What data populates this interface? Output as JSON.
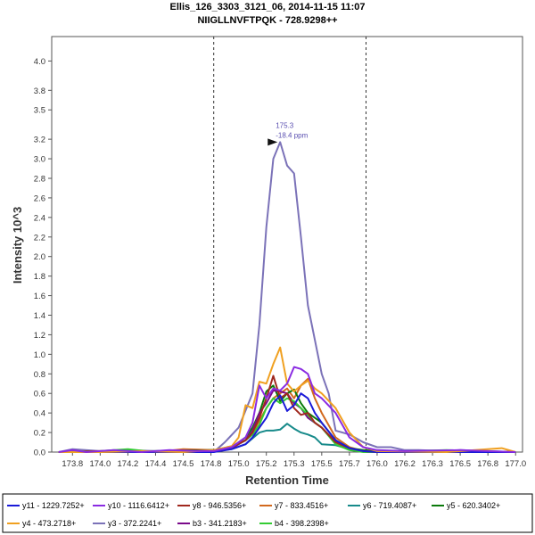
{
  "chart_data": {
    "type": "line",
    "title": "Ellis_126_3303_3121_06, 2014-11-15 11:07",
    "subtitle": "NIIGLLNVFTPQK - 728.9298++",
    "xlabel": "Retention Time",
    "ylabel": "Intensity 10^3",
    "xlim": [
      173.65,
      177.05
    ],
    "ylim": [
      0,
      4.25
    ],
    "xticks": [
      "173.8",
      "174.0",
      "174.2",
      "174.4",
      "174.5",
      "174.8",
      "175.0",
      "175.2",
      "175.3",
      "175.5",
      "175.7",
      "176.0",
      "176.2",
      "176.3",
      "176.5",
      "176.8",
      "177.0"
    ],
    "yticks": [
      "0.0",
      "0.2",
      "0.4",
      "0.6",
      "0.8",
      "1.0",
      "1.2",
      "1.4",
      "1.6",
      "1.8",
      "2.0",
      "2.2",
      "2.4",
      "2.6",
      "2.8",
      "3.0",
      "3.2",
      "3.5",
      "3.8",
      "4.0"
    ],
    "boundaries": [
      174.82,
      175.92
    ],
    "annotation": {
      "x": 175.3,
      "y": 3.17,
      "line1": "175.3",
      "line2": "-18.4 ppm"
    },
    "series": [
      {
        "name": "y11 - 1229.7252+",
        "color": "#1a1ad8",
        "x": [
          173.7,
          174.0,
          174.4,
          174.82,
          174.95,
          175.05,
          175.1,
          175.15,
          175.2,
          175.25,
          175.3,
          175.35,
          175.4,
          175.45,
          175.5,
          175.55,
          175.6,
          175.7,
          175.8,
          175.9,
          176.0,
          176.3,
          176.6,
          177.0
        ],
        "y": [
          0.0,
          0.0,
          0.0,
          0.0,
          0.03,
          0.08,
          0.15,
          0.25,
          0.35,
          0.5,
          0.58,
          0.42,
          0.48,
          0.6,
          0.55,
          0.4,
          0.3,
          0.12,
          0.04,
          0.01,
          0.0,
          0.0,
          0.0,
          0.0
        ]
      },
      {
        "name": "y10 - 1116.6412+",
        "color": "#8a2be2",
        "x": [
          173.7,
          173.8,
          173.9,
          174.1,
          174.3,
          174.5,
          174.7,
          174.82,
          174.95,
          175.05,
          175.1,
          175.15,
          175.2,
          175.25,
          175.3,
          175.35,
          175.4,
          175.45,
          175.5,
          175.55,
          175.6,
          175.7,
          175.8,
          175.9,
          176.0,
          176.2,
          176.6,
          177.0
        ],
        "y": [
          0.0,
          0.02,
          0.0,
          0.02,
          0.0,
          0.02,
          0.01,
          0.01,
          0.05,
          0.15,
          0.3,
          0.68,
          0.55,
          0.65,
          0.63,
          0.7,
          0.87,
          0.85,
          0.8,
          0.6,
          0.55,
          0.4,
          0.15,
          0.05,
          0.02,
          0.01,
          0.02,
          0.0
        ]
      },
      {
        "name": "y8 - 946.5356+",
        "color": "#a0281e",
        "x": [
          173.7,
          174.0,
          174.4,
          174.82,
          174.95,
          175.05,
          175.1,
          175.15,
          175.2,
          175.25,
          175.3,
          175.35,
          175.4,
          175.45,
          175.5,
          175.55,
          175.6,
          175.7,
          175.8,
          175.9,
          176.0,
          176.5,
          177.0
        ],
        "y": [
          0.0,
          0.01,
          0.0,
          0.02,
          0.05,
          0.12,
          0.2,
          0.35,
          0.55,
          0.78,
          0.55,
          0.6,
          0.45,
          0.38,
          0.4,
          0.3,
          0.25,
          0.1,
          0.04,
          0.01,
          0.0,
          0.01,
          0.0
        ]
      },
      {
        "name": "y7 - 833.4516+",
        "color": "#d2691e",
        "x": [
          173.7,
          174.0,
          174.4,
          174.6,
          174.82,
          174.95,
          175.05,
          175.1,
          175.15,
          175.2,
          175.25,
          175.3,
          175.35,
          175.4,
          175.45,
          175.5,
          175.55,
          175.6,
          175.7,
          175.8,
          175.9,
          176.0,
          177.0
        ],
        "y": [
          0.0,
          0.0,
          0.0,
          0.03,
          0.02,
          0.06,
          0.12,
          0.2,
          0.32,
          0.45,
          0.55,
          0.6,
          0.65,
          0.55,
          0.68,
          0.75,
          0.55,
          0.4,
          0.15,
          0.05,
          0.01,
          0.0,
          0.0
        ]
      },
      {
        "name": "y6 - 719.4087+",
        "color": "#178a8a",
        "x": [
          173.7,
          174.0,
          174.4,
          174.82,
          174.95,
          175.05,
          175.1,
          175.15,
          175.2,
          175.25,
          175.3,
          175.35,
          175.4,
          175.45,
          175.5,
          175.55,
          175.6,
          175.7,
          175.8,
          175.9,
          176.0,
          176.5,
          177.0
        ],
        "y": [
          0.0,
          0.0,
          0.0,
          0.01,
          0.03,
          0.08,
          0.14,
          0.2,
          0.22,
          0.22,
          0.23,
          0.29,
          0.24,
          0.2,
          0.18,
          0.15,
          0.08,
          0.07,
          0.03,
          0.01,
          0.0,
          0.0,
          0.0
        ]
      },
      {
        "name": "y5 - 620.3402+",
        "color": "#0b7a0b",
        "x": [
          173.7,
          174.0,
          174.4,
          174.82,
          174.95,
          175.05,
          175.1,
          175.15,
          175.2,
          175.25,
          175.3,
          175.35,
          175.4,
          175.45,
          175.5,
          175.55,
          175.6,
          175.7,
          175.8,
          175.9,
          176.0,
          176.5,
          177.0
        ],
        "y": [
          0.0,
          0.0,
          0.01,
          0.02,
          0.05,
          0.15,
          0.25,
          0.4,
          0.62,
          0.68,
          0.52,
          0.6,
          0.64,
          0.5,
          0.4,
          0.35,
          0.3,
          0.12,
          0.04,
          0.02,
          0.01,
          0.0,
          0.0
        ]
      },
      {
        "name": "y4 - 473.2718+",
        "color": "#f0a020",
        "x": [
          173.7,
          174.0,
          174.3,
          174.6,
          174.82,
          174.95,
          175.0,
          175.05,
          175.1,
          175.15,
          175.2,
          175.25,
          175.3,
          175.35,
          175.4,
          175.45,
          175.5,
          175.55,
          175.6,
          175.7,
          175.8,
          175.9,
          176.0,
          176.5,
          176.9,
          177.0
        ],
        "y": [
          0.0,
          0.0,
          0.01,
          0.0,
          0.02,
          0.06,
          0.15,
          0.48,
          0.45,
          0.72,
          0.7,
          0.9,
          1.07,
          0.7,
          0.62,
          0.68,
          0.73,
          0.65,
          0.6,
          0.45,
          0.2,
          0.05,
          0.01,
          0.0,
          0.04,
          0.0
        ]
      },
      {
        "name": "y3 - 372.2241+",
        "color": "#7b72b8",
        "x": [
          173.7,
          173.8,
          174.0,
          174.2,
          174.4,
          174.6,
          174.82,
          174.9,
          175.0,
          175.1,
          175.15,
          175.2,
          175.25,
          175.3,
          175.35,
          175.4,
          175.45,
          175.5,
          175.6,
          175.65,
          175.7,
          175.8,
          175.9,
          176.0,
          176.1,
          176.2,
          176.3,
          176.5,
          176.6,
          176.8,
          177.0
        ],
        "y": [
          0.0,
          0.03,
          0.01,
          0.02,
          0.01,
          0.02,
          0.0,
          0.1,
          0.25,
          0.6,
          1.3,
          2.3,
          3.0,
          3.17,
          2.93,
          2.85,
          2.2,
          1.5,
          0.8,
          0.6,
          0.22,
          0.18,
          0.1,
          0.05,
          0.05,
          0.02,
          0.02,
          0.01,
          0.02,
          0.01,
          0.0
        ]
      },
      {
        "name": "b3 - 341.2183+",
        "color": "#7a0a8a",
        "x": [
          173.7,
          174.0,
          174.4,
          174.82,
          174.95,
          175.05,
          175.1,
          175.15,
          175.2,
          175.25,
          175.3,
          175.35,
          175.4,
          175.45,
          175.5,
          175.55,
          175.6,
          175.7,
          175.8,
          175.9,
          176.0,
          176.5,
          177.0
        ],
        "y": [
          0.0,
          0.0,
          0.0,
          0.01,
          0.04,
          0.12,
          0.22,
          0.4,
          0.5,
          0.63,
          0.62,
          0.6,
          0.5,
          0.45,
          0.35,
          0.3,
          0.25,
          0.1,
          0.03,
          0.01,
          0.0,
          0.0,
          0.0
        ]
      },
      {
        "name": "b4 - 398.2398+",
        "color": "#33cc33",
        "x": [
          173.7,
          174.0,
          174.2,
          174.4,
          174.82,
          174.95,
          175.05,
          175.1,
          175.15,
          175.2,
          175.25,
          175.3,
          175.35,
          175.4,
          175.45,
          175.5,
          175.55,
          175.6,
          175.7,
          175.8,
          175.9,
          176.0,
          176.5,
          177.0
        ],
        "y": [
          0.0,
          0.01,
          0.03,
          0.0,
          0.02,
          0.05,
          0.12,
          0.18,
          0.28,
          0.45,
          0.55,
          0.5,
          0.55,
          0.52,
          0.45,
          0.38,
          0.3,
          0.25,
          0.08,
          0.02,
          0.0,
          0.0,
          0.02,
          0.0
        ]
      }
    ]
  }
}
